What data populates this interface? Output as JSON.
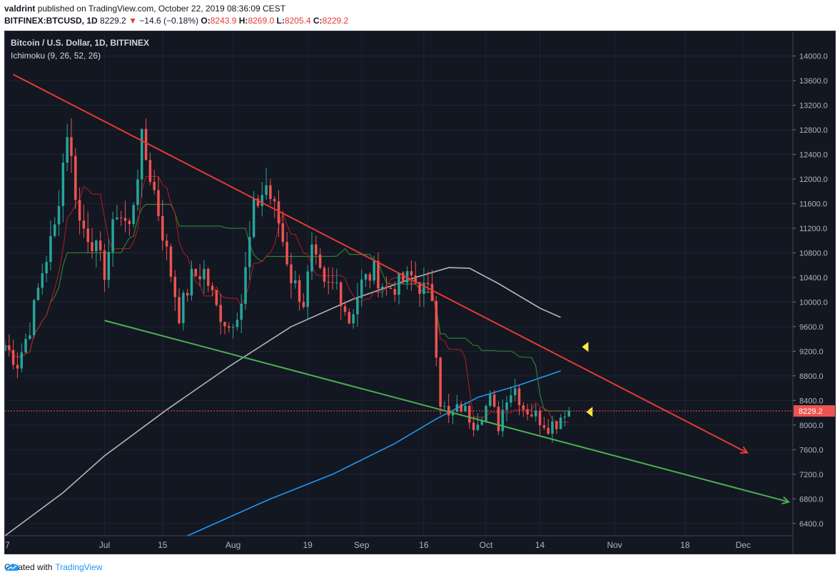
{
  "header": {
    "author": "valdrint",
    "published_text": "published on TradingView.com, October 22, 2019 08:36:09 CEST",
    "symbol": "BITFINEX:BTCUSD, 1D",
    "last": "8229.2",
    "change": "−14.6 (−0.18%)",
    "open_label": "O:",
    "open": "8243.9",
    "high_label": "H:",
    "high": "8269.0",
    "low_label": "L:",
    "low": "8205.4",
    "close_label": "C:",
    "close": "8229.2"
  },
  "chart_data": {
    "type": "candlestick",
    "title": "Bitcoin / U.S. Dollar, 1D, BITFINEX",
    "indicator": "Ichimoku (9, 26, 52, 26)",
    "ylim": [
      6200,
      14400
    ],
    "y_ticks": [
      6400,
      6800,
      7200,
      7600,
      8000,
      8400,
      8800,
      9200,
      9600,
      10000,
      10400,
      10800,
      11200,
      11600,
      12000,
      12400,
      12800,
      13200,
      13600,
      14000
    ],
    "x_tick_labels": [
      "7",
      "Jul",
      "15",
      "Aug",
      "19",
      "Sep",
      "16",
      "Oct",
      "14",
      "Nov",
      "18",
      "Dec"
    ],
    "x_tick_days": [
      -24,
      0,
      14,
      31,
      49,
      62,
      77,
      92,
      105,
      123,
      140,
      154
    ],
    "day_range": [
      -24,
      166
    ],
    "last_price": 8229.2,
    "last_price_label": "8229.2",
    "candles_note": "daily OHLC from day -24 (Jun 7) to day 112 (Oct 21)",
    "price_keypoints": [
      [
        -24,
        9300
      ],
      [
        -21,
        9000
      ],
      [
        -18,
        9600
      ],
      [
        -15,
        10500
      ],
      [
        -12,
        11200
      ],
      [
        -9,
        12800
      ],
      [
        -6,
        11300
      ],
      [
        -3,
        11000
      ],
      [
        0,
        10500
      ],
      [
        3,
        11500
      ],
      [
        6,
        11200
      ],
      [
        9,
        12600
      ],
      [
        12,
        11800
      ],
      [
        15,
        10800
      ],
      [
        18,
        9800
      ],
      [
        21,
        10400
      ],
      [
        24,
        10500
      ],
      [
        27,
        9900
      ],
      [
        30,
        9600
      ],
      [
        33,
        10000
      ],
      [
        36,
        11500
      ],
      [
        39,
        11900
      ],
      [
        42,
        11300
      ],
      [
        45,
        10400
      ],
      [
        48,
        10000
      ],
      [
        50,
        10800
      ],
      [
        53,
        10200
      ],
      [
        56,
        10300
      ],
      [
        59,
        9700
      ],
      [
        62,
        10300
      ],
      [
        65,
        10500
      ],
      [
        68,
        10200
      ],
      [
        71,
        10300
      ],
      [
        74,
        10400
      ],
      [
        77,
        10200
      ],
      [
        79,
        10100
      ],
      [
        81,
        8400
      ],
      [
        83,
        8100
      ],
      [
        86,
        8300
      ],
      [
        89,
        8050
      ],
      [
        91,
        8200
      ],
      [
        93,
        8400
      ],
      [
        95,
        8000
      ],
      [
        97,
        8500
      ],
      [
        99,
        8600
      ],
      [
        101,
        8300
      ],
      [
        103,
        8200
      ],
      [
        105,
        8100
      ],
      [
        107,
        8000
      ],
      [
        109,
        8050
      ],
      [
        111,
        8250
      ],
      [
        112,
        8229
      ]
    ],
    "trendlines": [
      {
        "name": "resistance",
        "color": "#e53935",
        "from": [
          -22,
          13700
        ],
        "to": [
          155,
          7550
        ]
      },
      {
        "name": "support",
        "color": "#4caf50",
        "from": [
          0,
          9700
        ],
        "to": [
          165,
          6750
        ]
      }
    ],
    "ma_lines": [
      {
        "color": "#b2b5be",
        "points": [
          [
            -24,
            6200
          ],
          [
            -10,
            6900
          ],
          [
            0,
            7500
          ],
          [
            15,
            8250
          ],
          [
            30,
            8950
          ],
          [
            45,
            9600
          ],
          [
            60,
            10050
          ],
          [
            75,
            10400
          ],
          [
            83,
            10560
          ],
          [
            88,
            10550
          ],
          [
            95,
            10300
          ],
          [
            105,
            9900
          ],
          [
            110,
            9750
          ]
        ]
      },
      {
        "color": "#2196f3",
        "points": [
          [
            20,
            6200
          ],
          [
            40,
            6800
          ],
          [
            55,
            7200
          ],
          [
            70,
            7700
          ],
          [
            80,
            8100
          ],
          [
            90,
            8450
          ],
          [
            100,
            8650
          ],
          [
            110,
            8880
          ]
        ]
      }
    ],
    "markers": [
      {
        "day": 116,
        "price": 9270,
        "color": "#ffeb3b"
      },
      {
        "day": 117,
        "price": 8215,
        "color": "#ffeb3b"
      }
    ]
  },
  "footer": {
    "created_with": "Created with",
    "brand": "TradingView"
  }
}
